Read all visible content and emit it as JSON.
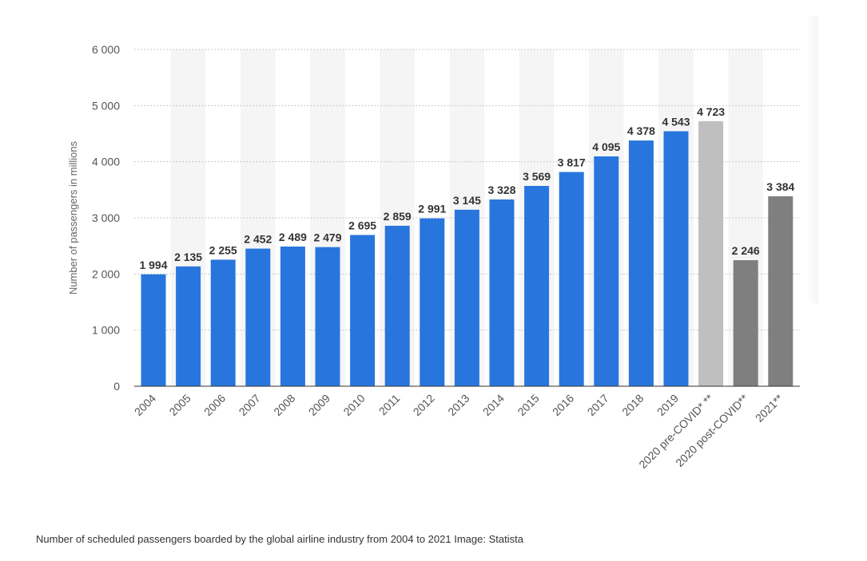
{
  "chart_data": {
    "type": "bar",
    "categories": [
      "2004",
      "2005",
      "2006",
      "2007",
      "2008",
      "2009",
      "2010",
      "2011",
      "2012",
      "2013",
      "2014",
      "2015",
      "2016",
      "2017",
      "2018",
      "2019",
      "2020 pre-COVID* **",
      "2020 post-COVID**",
      "2021**"
    ],
    "values": [
      1994,
      2135,
      2255,
      2452,
      2489,
      2479,
      2695,
      2859,
      2991,
      3145,
      3328,
      3569,
      3817,
      4095,
      4378,
      4543,
      4723,
      2246,
      3384
    ],
    "data_labels": [
      "1 994",
      "2 135",
      "2 255",
      "2 452",
      "2 489",
      "2 479",
      "2 695",
      "2 859",
      "2 991",
      "3 145",
      "3 328",
      "3 569",
      "3 817",
      "4 095",
      "4 378",
      "4 543",
      "4 723",
      "2 246",
      "3 384"
    ],
    "bar_colors": [
      "#2876dd",
      "#2876dd",
      "#2876dd",
      "#2876dd",
      "#2876dd",
      "#2876dd",
      "#2876dd",
      "#2876dd",
      "#2876dd",
      "#2876dd",
      "#2876dd",
      "#2876dd",
      "#2876dd",
      "#2876dd",
      "#2876dd",
      "#2876dd",
      "#bfbfbf",
      "#7f7f7f",
      "#7f7f7f"
    ],
    "ylabel": "Number of passengers in millions",
    "ylim": [
      0,
      6000
    ],
    "yticks": [
      0,
      1000,
      2000,
      3000,
      4000,
      5000,
      6000
    ],
    "ytick_labels": [
      "0",
      "1 000",
      "2 000",
      "3 000",
      "4 000",
      "5 000",
      "6 000"
    ],
    "grid": true,
    "legend": "none"
  },
  "caption": "Number of scheduled passengers boarded by the global airline industry from 2004 to 2021 Image: Statista",
  "colors": {
    "primary_bar": "#2876dd",
    "pre_covid_bar": "#bfbfbf",
    "forecast_bar": "#7f7f7f",
    "band": "#f5f5f5",
    "grid": "#c8c8c8"
  }
}
